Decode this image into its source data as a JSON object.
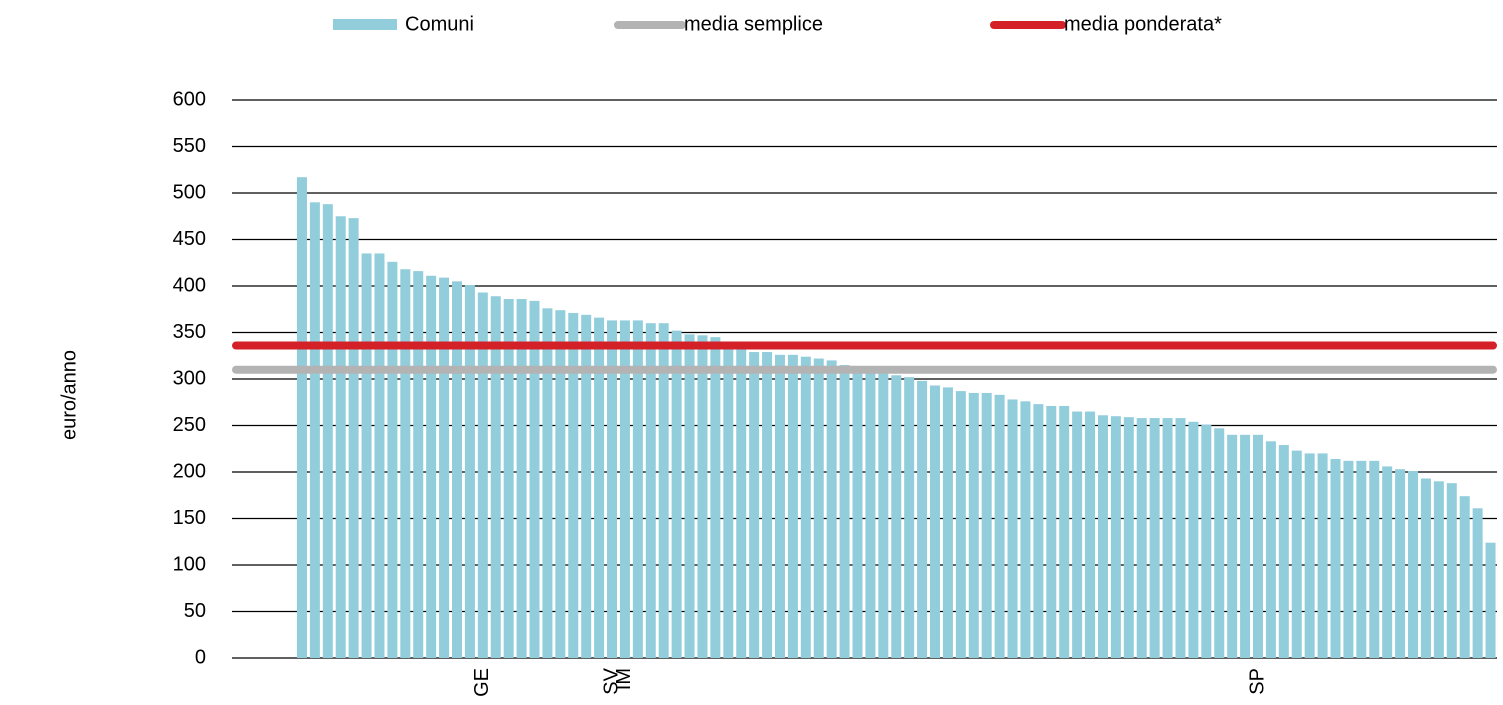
{
  "chart_data": {
    "type": "bar",
    "y_label": "euro/anno",
    "categories": [
      null,
      null,
      null,
      null,
      null,
      null,
      null,
      null,
      null,
      null,
      null,
      null,
      null,
      null,
      "GE",
      null,
      null,
      null,
      null,
      null,
      null,
      null,
      null,
      null,
      "SV",
      "IM",
      null,
      null,
      null,
      null,
      null,
      null,
      null,
      null,
      null,
      null,
      null,
      null,
      null,
      null,
      null,
      null,
      null,
      null,
      null,
      null,
      null,
      null,
      null,
      null,
      null,
      null,
      null,
      null,
      null,
      null,
      null,
      null,
      null,
      null,
      null,
      null,
      null,
      null,
      null,
      null,
      null,
      null,
      null,
      null,
      null,
      null,
      null,
      null,
      "SP",
      null,
      null,
      null,
      null,
      null,
      null,
      null,
      null,
      null,
      null,
      null,
      null,
      null,
      null,
      null,
      null,
      null,
      null
    ],
    "series": [
      {
        "name": "Comuni",
        "color": "#92cddc",
        "values": [
          517,
          490,
          488,
          475,
          473,
          435,
          435,
          426,
          418,
          416,
          411,
          409,
          405,
          401,
          393,
          389,
          386,
          386,
          384,
          376,
          374,
          371,
          369,
          366,
          363,
          363,
          363,
          360,
          360,
          352,
          348,
          347,
          345,
          340,
          333,
          329,
          329,
          326,
          326,
          324,
          322,
          320,
          315,
          313,
          310,
          307,
          304,
          302,
          298,
          293,
          291,
          287,
          285,
          285,
          283,
          278,
          276,
          273,
          271,
          271,
          265,
          265,
          261,
          260,
          259,
          258,
          258,
          258,
          258,
          254,
          251,
          247,
          240,
          240,
          240,
          233,
          229,
          223,
          220,
          220,
          214,
          212,
          212,
          212,
          206,
          203,
          201,
          193,
          190,
          188,
          174,
          161,
          124
        ]
      }
    ],
    "reference_lines": [
      {
        "name": "media semplice",
        "value": 310,
        "color": "#b3b3b3"
      },
      {
        "name": "media ponderata*",
        "value": 336,
        "color": "#d42027"
      }
    ],
    "ylim": [
      0,
      600
    ],
    "yticks": [
      0,
      50,
      100,
      150,
      200,
      250,
      300,
      350,
      400,
      450,
      500,
      550,
      600
    ],
    "grid": true
  }
}
